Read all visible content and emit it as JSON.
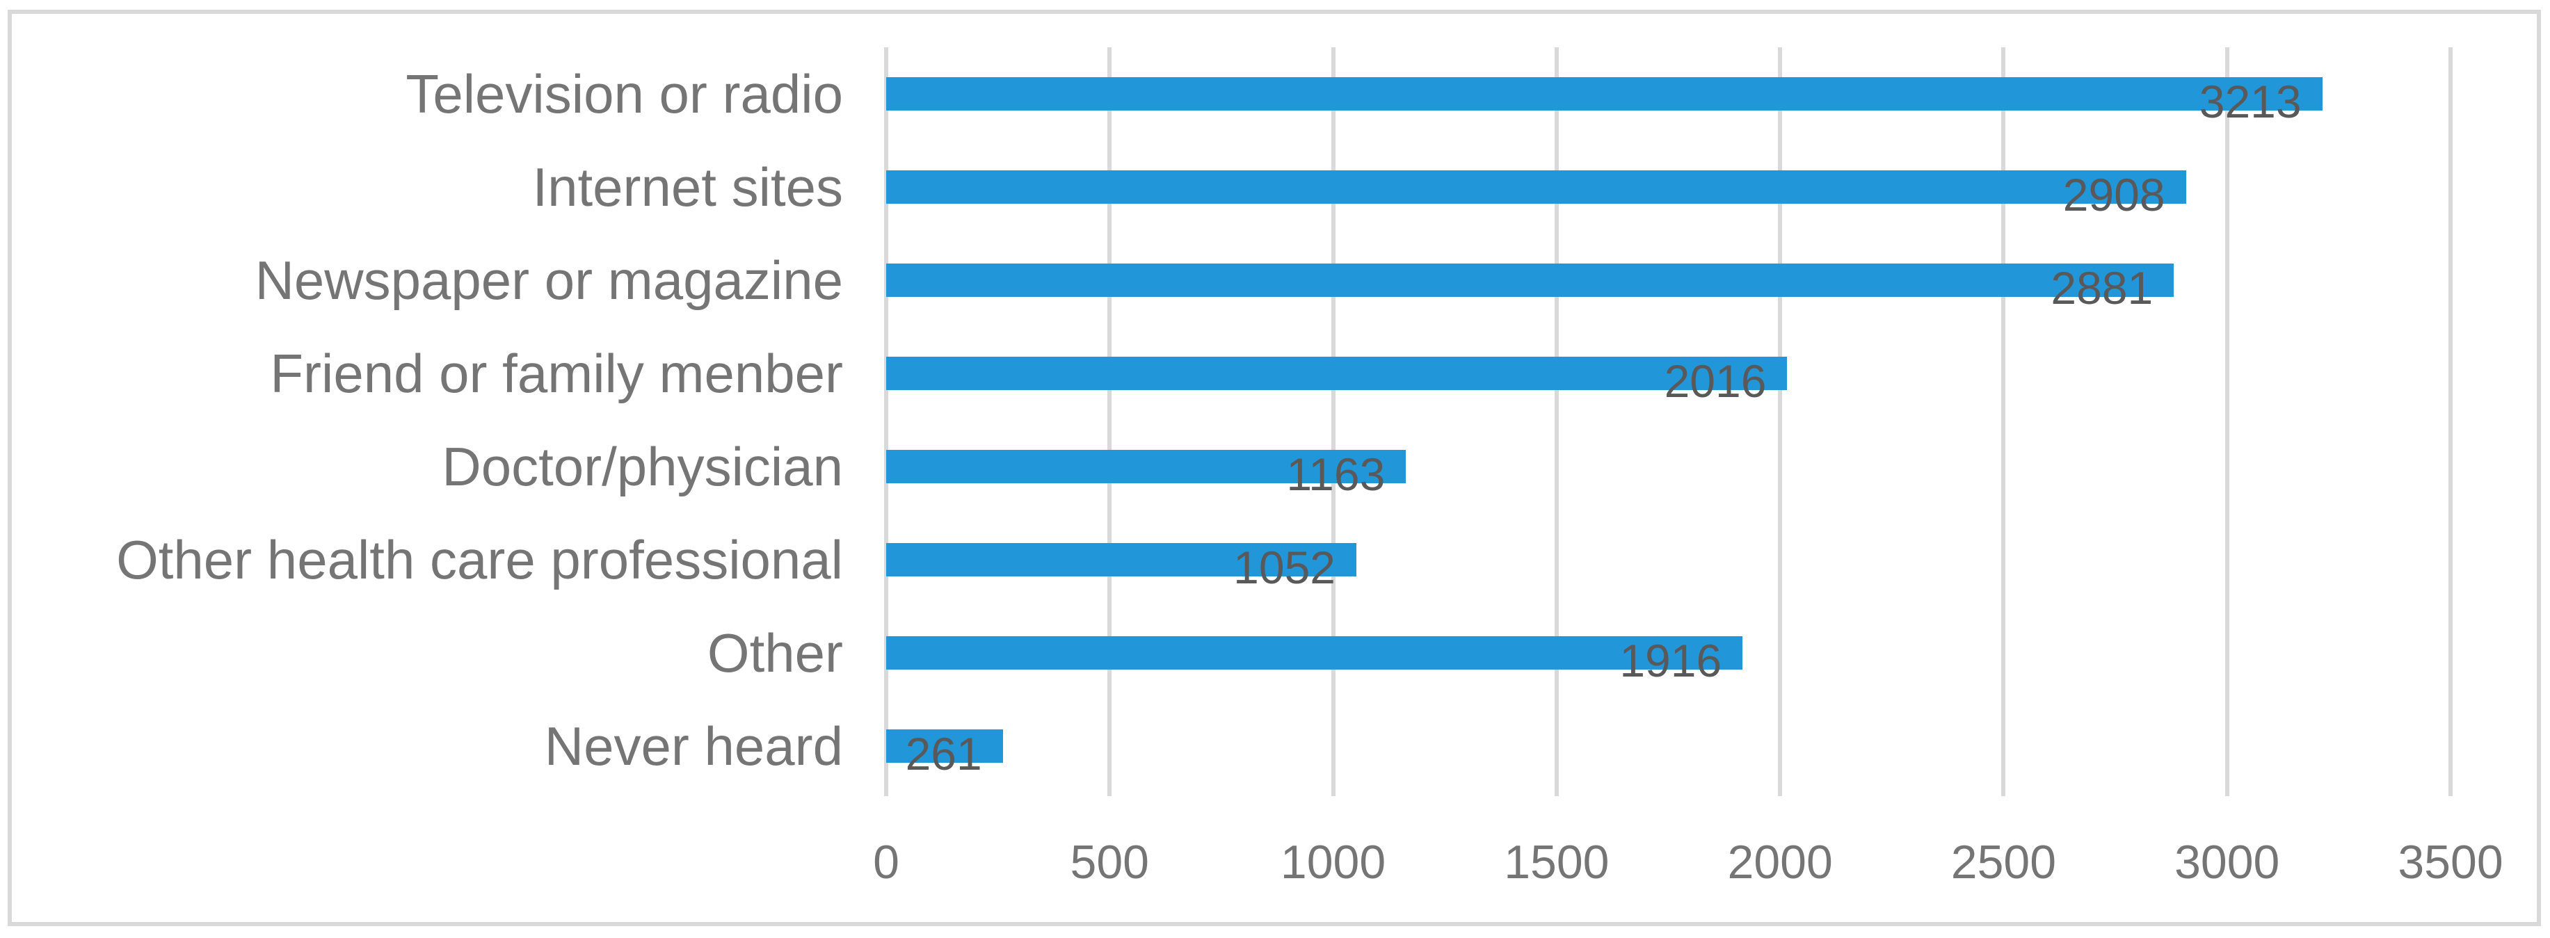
{
  "chart_data": {
    "type": "bar",
    "orientation": "horizontal",
    "title": "",
    "xlabel": "",
    "ylabel": "",
    "categories": [
      "Television or radio",
      "Internet sites",
      "Newspaper or magazine",
      "Friend or family menber",
      "Doctor/physician",
      "Other health care professional",
      "Other",
      "Never heard"
    ],
    "values": [
      3213,
      2908,
      2881,
      2016,
      1163,
      1052,
      1916,
      261
    ],
    "data_labels": [
      "3213",
      "2908",
      "2881",
      "2016",
      "1163",
      "1052",
      "1916",
      "261"
    ],
    "data_labels_visible": true,
    "xlim": [
      0,
      3500
    ],
    "x_ticks": [
      "0",
      "500",
      "1000",
      "1500",
      "2000",
      "2500",
      "3000",
      "3500"
    ],
    "x_tick_values": [
      0,
      500,
      1000,
      1500,
      2000,
      2500,
      3000,
      3500
    ],
    "grid": true,
    "legend": false,
    "colors": {
      "bar": "#2196D8",
      "gridline": "#D9D9D9",
      "frame_border": "#D9D9D9",
      "category_label": "#757575",
      "axis_label": "#757575",
      "data_label": "#595959",
      "background": "#FFFFFF"
    }
  }
}
